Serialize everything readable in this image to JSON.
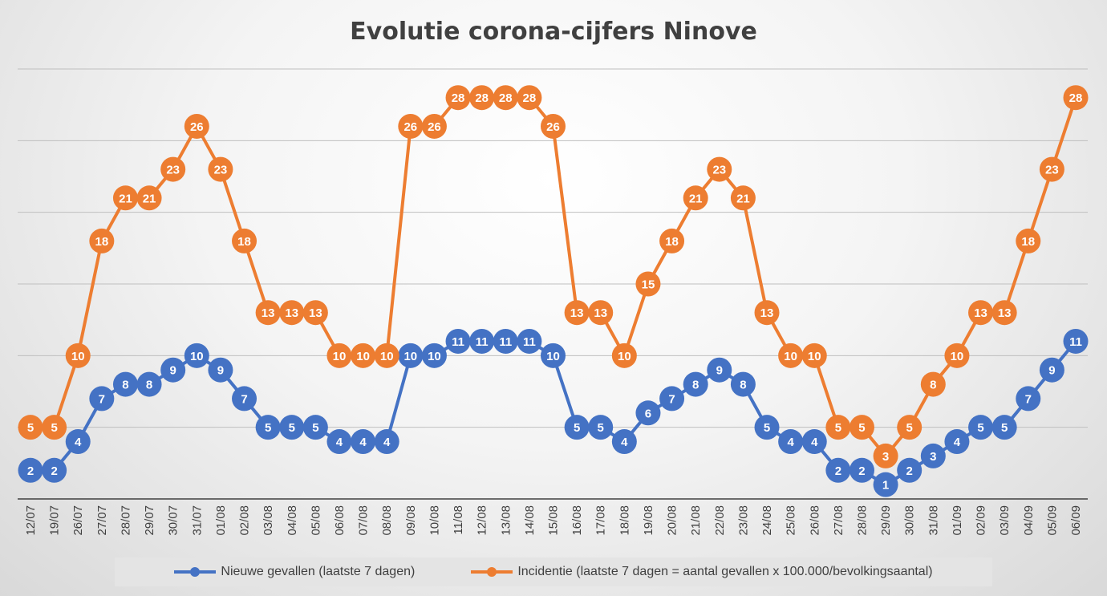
{
  "chart_data": {
    "type": "line",
    "title": "Evolutie corona-cijfers Ninove",
    "categories": [
      "12/07",
      "19/07",
      "26/07",
      "27/07",
      "28/07",
      "29/07",
      "30/07",
      "31/07",
      "01/08",
      "02/08",
      "03/08",
      "04/08",
      "05/08",
      "06/08",
      "07/08",
      "08/08",
      "09/08",
      "10/08",
      "11/08",
      "12/08",
      "13/08",
      "14/08",
      "15/08",
      "16/08",
      "17/08",
      "18/08",
      "19/08",
      "20/08",
      "21/08",
      "22/08",
      "23/08",
      "24/08",
      "25/08",
      "26/08",
      "27/08",
      "28/08",
      "29/09",
      "30/08",
      "31/08",
      "01/09",
      "02/09",
      "03/09",
      "04/09",
      "05/09",
      "06/09"
    ],
    "series": [
      {
        "name": "Nieuwe gevallen (laatste 7 dagen)",
        "color": "#4472C4",
        "values": [
          2,
          2,
          4,
          7,
          8,
          8,
          9,
          10,
          9,
          7,
          5,
          5,
          5,
          4,
          4,
          4,
          10,
          10,
          11,
          11,
          11,
          11,
          10,
          5,
          5,
          4,
          6,
          7,
          8,
          9,
          8,
          5,
          4,
          4,
          2,
          2,
          1,
          2,
          3,
          4,
          5,
          5,
          7,
          9,
          11
        ]
      },
      {
        "name": "Incidentie (laatste 7 dagen = aantal gevallen x 100.000/bevolkingsaantal)",
        "color": "#ED7D31",
        "values": [
          5,
          5,
          10,
          18,
          21,
          21,
          23,
          26,
          23,
          18,
          13,
          13,
          13,
          10,
          10,
          10,
          26,
          26,
          28,
          28,
          28,
          28,
          26,
          13,
          13,
          10,
          15,
          18,
          21,
          23,
          21,
          13,
          10,
          10,
          5,
          5,
          3,
          5,
          8,
          10,
          13,
          13,
          18,
          23,
          28
        ]
      }
    ],
    "ylim": [
      0,
      30
    ],
    "grid": true,
    "legend": "bottom",
    "xlabel": "",
    "ylabel": ""
  }
}
